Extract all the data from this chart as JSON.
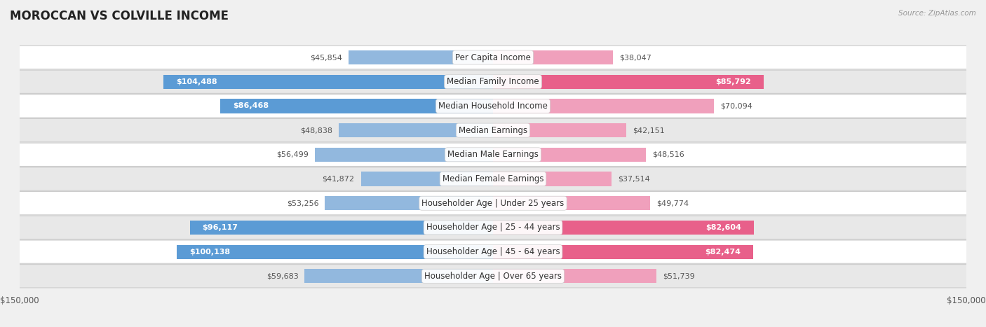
{
  "title": "MOROCCAN VS COLVILLE INCOME",
  "source": "Source: ZipAtlas.com",
  "categories": [
    "Per Capita Income",
    "Median Family Income",
    "Median Household Income",
    "Median Earnings",
    "Median Male Earnings",
    "Median Female Earnings",
    "Householder Age | Under 25 years",
    "Householder Age | 25 - 44 years",
    "Householder Age | 45 - 64 years",
    "Householder Age | Over 65 years"
  ],
  "moroccan_values": [
    45854,
    104488,
    86468,
    48838,
    56499,
    41872,
    53256,
    96117,
    100138,
    59683
  ],
  "colville_values": [
    38047,
    85792,
    70094,
    42151,
    48516,
    37514,
    49774,
    82604,
    82474,
    51739
  ],
  "moroccan_labels": [
    "$45,854",
    "$104,488",
    "$86,468",
    "$48,838",
    "$56,499",
    "$41,872",
    "$53,256",
    "$96,117",
    "$100,138",
    "$59,683"
  ],
  "colville_labels": [
    "$38,047",
    "$85,792",
    "$70,094",
    "$42,151",
    "$48,516",
    "$37,514",
    "$49,774",
    "$82,604",
    "$82,474",
    "$51,739"
  ],
  "moroccan_color_light": "#92b8de",
  "moroccan_color_dark": "#5b9bd5",
  "colville_color_light": "#f0a0bc",
  "colville_color_dark": "#e8608a",
  "max_value": 150000,
  "bar_height": 0.58,
  "background_color": "#f0f0f0",
  "row_bg_color": "#ffffff",
  "row_alt_bg": "#e8e8e8",
  "label_fontsize": 8.0,
  "cat_fontsize": 8.5,
  "title_fontsize": 12,
  "legend_fontsize": 9,
  "inside_label_threshold": 75000
}
